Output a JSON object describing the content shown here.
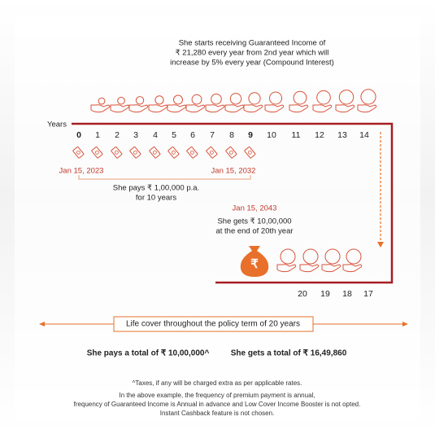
{
  "intro": [
    "She starts receiving Guaranteed Income of",
    "₹ 21,280 every year from 2nd year which will",
    "increase by 5% every year (Compound Interest)"
  ],
  "timeline": {
    "years_label": "Years",
    "years": [
      "0",
      "1",
      "2",
      "3",
      "4",
      "5",
      "6",
      "7",
      "8",
      "9",
      "10",
      "11",
      "12",
      "13",
      "14"
    ],
    "end_years": [
      "20",
      "19",
      "18",
      "17"
    ],
    "start_date": "Jan 15, 2023",
    "end_date": "Jan 15, 2032",
    "payment": [
      "She pays ₹ 1,00,000  p.a.",
      "for 10 years"
    ],
    "maturity_date": "Jan 15, 2043",
    "maturity": [
      "She gets ₹ 10,00,000",
      "at the end of 20th year"
    ],
    "bag_symbol": "₹"
  },
  "life_cover": "Life cover throughout the policy term of 20 years",
  "totals": {
    "pays": "She pays a total of ₹ 10,00,000^",
    "gets": "She gets a total of  ₹ 16,49,860"
  },
  "footnotes": [
    "^Taxes, if any will be charged extra as per applicable rates.",
    "In the above example, the frequency of premium payment is annual,",
    "frequency of Guaranteed Income is Annual in advance and Low Cover Income Booster is not opted.",
    "Instant Cashback feature is not chosen."
  ]
}
